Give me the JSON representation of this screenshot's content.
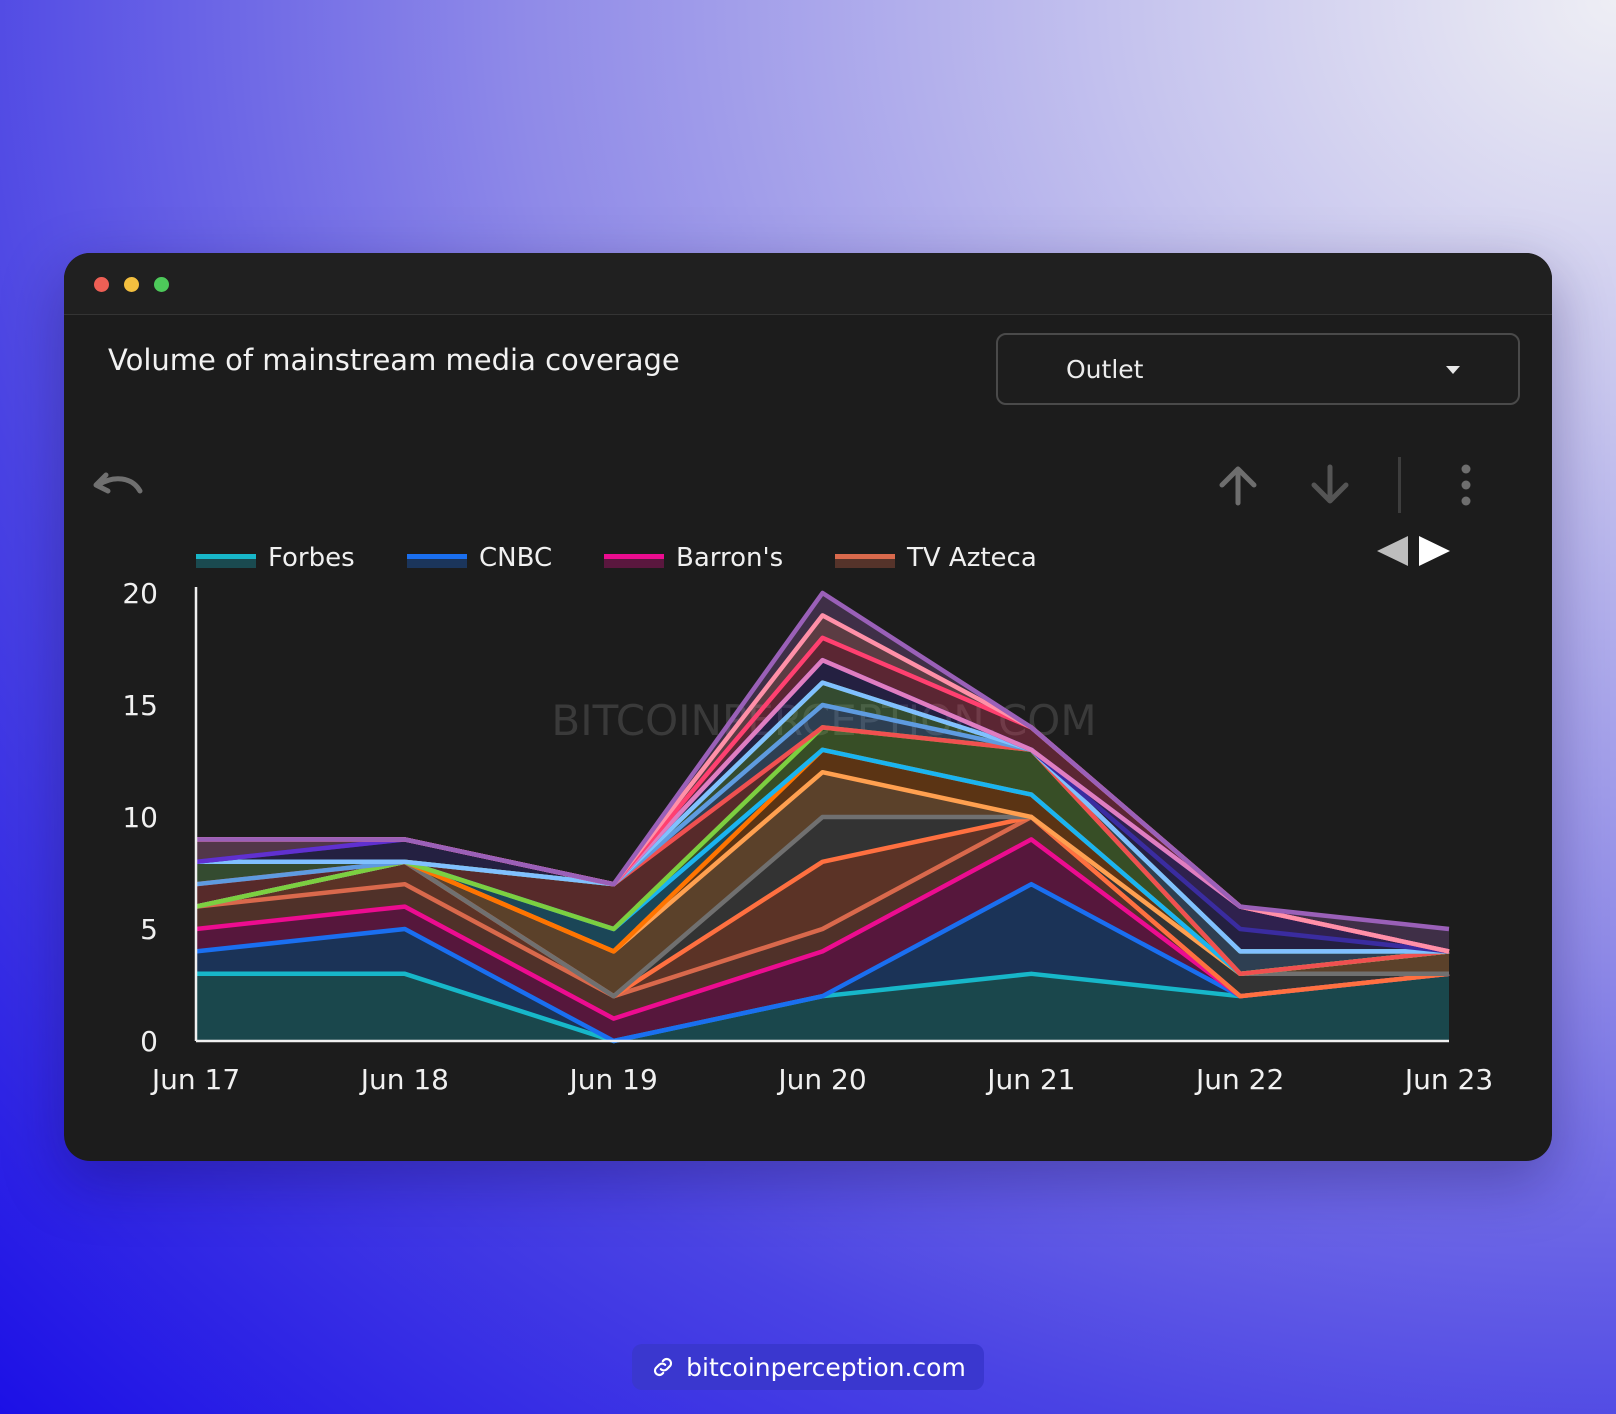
{
  "window": {
    "title": "Volume of mainstream media coverage"
  },
  "dropdown": {
    "label": "Outlet"
  },
  "toolbar": {
    "icons": [
      "undo-icon",
      "arrow-up-icon",
      "arrow-down-icon",
      "more-vertical-icon"
    ]
  },
  "watermark": "BITCOINPERCEPTION.COM",
  "footer": {
    "link_text": "bitcoinperception.com",
    "icon": "link-icon"
  },
  "chart_data": {
    "type": "area",
    "stacked": true,
    "title": "Volume of mainstream media coverage",
    "xlabel": "",
    "ylabel": "",
    "categories": [
      "Jun 17",
      "Jun 18",
      "Jun 19",
      "Jun 20",
      "Jun 21",
      "Jun 22",
      "Jun 23"
    ],
    "ylim": [
      0,
      20
    ],
    "yticks": [
      0,
      5,
      10,
      15,
      20
    ],
    "legend_position": "top-left",
    "legend_visible": [
      "Forbes",
      "CNBC",
      "Barron's",
      "TV Azteca"
    ],
    "series": [
      {
        "name": "Forbes",
        "color": "#17b7c9",
        "values": [
          3,
          3,
          0,
          2,
          3,
          2,
          3
        ]
      },
      {
        "name": "CNBC",
        "color": "#1a6ff0",
        "values": [
          1,
          2,
          0,
          0,
          4,
          0,
          0
        ]
      },
      {
        "name": "Barron's",
        "color": "#ec0c90",
        "values": [
          1,
          1,
          1,
          2,
          2,
          0,
          0
        ]
      },
      {
        "name": "TV Azteca",
        "color": "#d9694c",
        "values": [
          1,
          1,
          1,
          1,
          1,
          0,
          0
        ]
      },
      {
        "color": "#ff7040",
        "values": [
          0,
          1,
          0,
          3,
          0,
          0,
          0
        ]
      },
      {
        "color": "#707070",
        "values": [
          0,
          0,
          0,
          2,
          0,
          1,
          0
        ]
      },
      {
        "color": "#ffa050",
        "values": [
          0,
          0,
          2,
          2,
          0,
          0,
          1
        ]
      },
      {
        "color": "#ff7400",
        "values": [
          0,
          0,
          0,
          1,
          1,
          0,
          0
        ]
      },
      {
        "color": "#1ab4f0",
        "values": [
          0,
          0,
          1,
          0,
          0,
          0,
          0
        ]
      },
      {
        "color": "#7ccf40",
        "values": [
          0,
          0,
          0,
          1,
          2,
          0,
          0
        ]
      },
      {
        "color": "#f05050",
        "values": [
          1,
          0,
          2,
          0,
          0,
          0,
          0
        ]
      },
      {
        "color": "#5e9be0",
        "values": [
          0,
          0,
          0,
          1,
          0,
          1,
          0
        ]
      },
      {
        "color": "#72c464",
        "values": [
          1,
          0,
          0,
          1,
          0,
          0,
          0
        ]
      },
      {
        "color": "#80c0ff",
        "values": [
          0,
          0,
          0,
          0,
          0,
          0,
          0
        ]
      },
      {
        "color": "#3a2ca0",
        "values": [
          0,
          1,
          0,
          1,
          0,
          1,
          0
        ]
      },
      {
        "color": "#6030d0",
        "values": [
          0,
          0,
          0,
          0,
          0,
          1,
          0
        ]
      },
      {
        "color": "#e07ec0",
        "values": [
          1,
          0,
          0,
          0,
          0,
          0,
          0
        ]
      },
      {
        "color": "#ff4070",
        "values": [
          0,
          0,
          0,
          1,
          1,
          0,
          0
        ]
      },
      {
        "color": "#ff90a8",
        "values": [
          0,
          0,
          0,
          1,
          0,
          0,
          0
        ]
      },
      {
        "color": "#9a60b8",
        "values": [
          0,
          0,
          0,
          1,
          0,
          0,
          1
        ]
      }
    ]
  }
}
